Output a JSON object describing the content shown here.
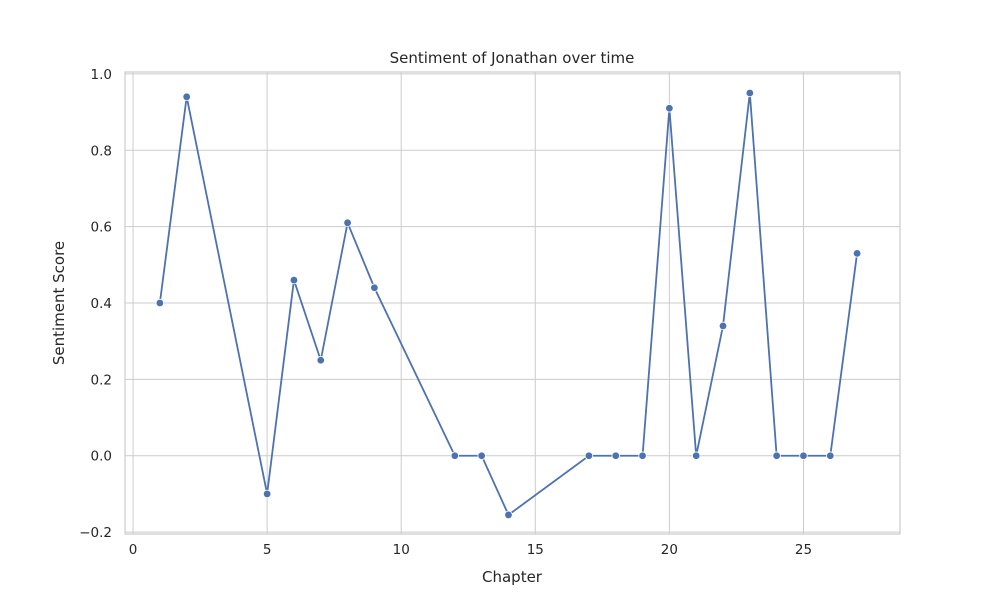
{
  "chart_data": {
    "type": "line",
    "title": "Sentiment of Jonathan over time",
    "xlabel": "Chapter",
    "ylabel": "Sentiment Score",
    "xlim": [
      -0.3,
      28.6
    ],
    "ylim": [
      -0.205,
      1.005
    ],
    "xticks": [
      0,
      5,
      10,
      15,
      20,
      25
    ],
    "yticks": [
      -0.2,
      0.0,
      0.2,
      0.4,
      0.6,
      0.8,
      1.0
    ],
    "ytick_labels": [
      "−0.2",
      "0.0",
      "0.2",
      "0.4",
      "0.6",
      "0.8",
      "1.0"
    ],
    "grid": true,
    "series": [
      {
        "color": "#4c72b0",
        "x": [
          1,
          2,
          5,
          6,
          7,
          8,
          9,
          12,
          13,
          14,
          17,
          18,
          19,
          20,
          21,
          22,
          23,
          24,
          25,
          26,
          27
        ],
        "y": [
          0.4,
          0.94,
          -0.1,
          0.46,
          0.25,
          0.61,
          0.44,
          0.0,
          0.0,
          -0.155,
          0.0,
          0.0,
          0.0,
          0.91,
          0.0,
          0.34,
          0.95,
          0.0,
          0.0,
          0.0,
          0.53
        ]
      }
    ]
  }
}
